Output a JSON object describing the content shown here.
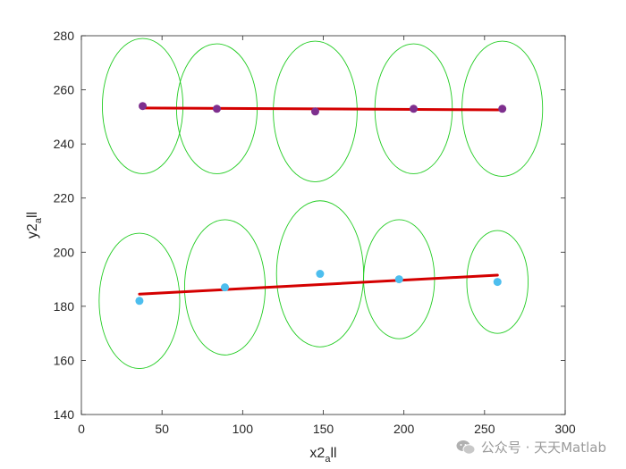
{
  "chart_data": {
    "type": "scatter",
    "xlabel": {
      "main": "x2",
      "sub": "a",
      "rest": "ll"
    },
    "ylabel": {
      "main": "y2",
      "sub": "a",
      "rest": "ll"
    },
    "xlim": [
      0,
      300
    ],
    "ylim": [
      140,
      280
    ],
    "xticks": [
      0,
      50,
      100,
      150,
      200,
      250,
      300
    ],
    "yticks": [
      140,
      160,
      180,
      200,
      220,
      240,
      260,
      280
    ],
    "series": [
      {
        "color": "#7e2f8e",
        "points": [
          [
            38,
            254
          ],
          [
            84,
            253
          ],
          [
            145,
            252
          ],
          [
            206,
            253
          ],
          [
            261,
            253
          ]
        ],
        "fit_line": [
          [
            37,
            253.3
          ],
          [
            262,
            252.6
          ]
        ],
        "ellipses": [
          {
            "cx": 38,
            "cy": 254,
            "rx": 25,
            "ry": 25
          },
          {
            "cx": 84,
            "cy": 253,
            "rx": 25,
            "ry": 24
          },
          {
            "cx": 145,
            "cy": 252,
            "rx": 26,
            "ry": 26
          },
          {
            "cx": 206,
            "cy": 253,
            "rx": 24,
            "ry": 24
          },
          {
            "cx": 261,
            "cy": 253,
            "rx": 25,
            "ry": 25
          }
        ]
      },
      {
        "color": "#4dbeee",
        "points": [
          [
            36,
            182
          ],
          [
            89,
            187
          ],
          [
            148,
            192
          ],
          [
            197,
            190
          ],
          [
            258,
            189
          ]
        ],
        "fit_line": [
          [
            36,
            184.5
          ],
          [
            258,
            191.5
          ]
        ],
        "ellipses": [
          {
            "cx": 36,
            "cy": 182,
            "rx": 25,
            "ry": 25
          },
          {
            "cx": 89,
            "cy": 187,
            "rx": 25,
            "ry": 25
          },
          {
            "cx": 148,
            "cy": 192,
            "rx": 27,
            "ry": 27
          },
          {
            "cx": 197,
            "cy": 190,
            "rx": 22,
            "ry": 22
          },
          {
            "cx": 258,
            "cy": 189,
            "rx": 19,
            "ry": 19
          }
        ]
      }
    ],
    "fit_color": "#d40000",
    "ellipse_color": "#22cc22",
    "grid": false
  },
  "watermark": {
    "text": "公众号 · 天天Matlab"
  }
}
